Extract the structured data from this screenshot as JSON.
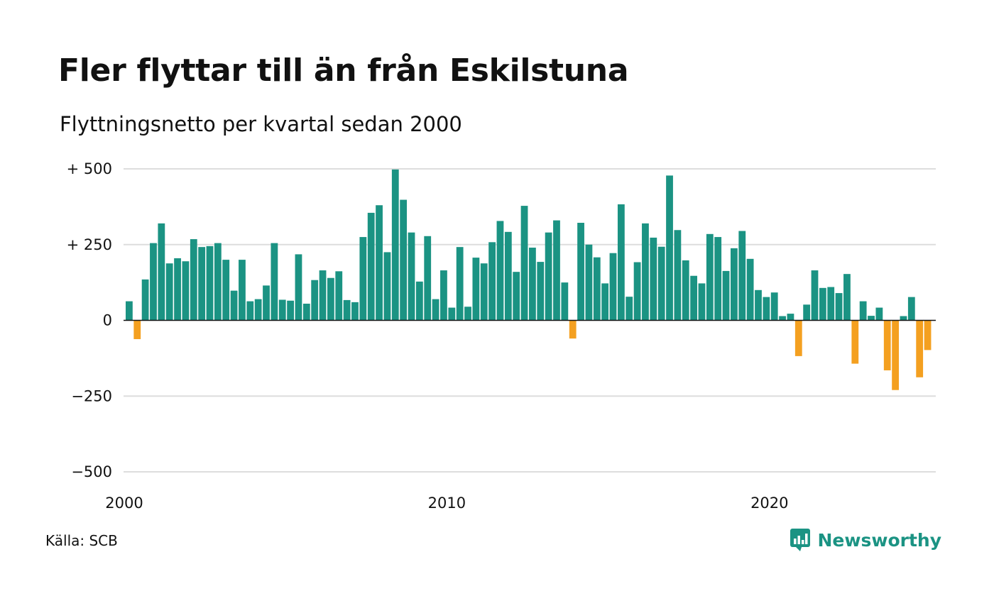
{
  "header": {
    "title": "Fler flyttar till än från Eskilstuna",
    "subtitle": "Flyttningsnetto per kvartal sedan 2000"
  },
  "footer": {
    "source": "Källa: SCB",
    "brand": "Newsworthy"
  },
  "colors": {
    "positive": "#1b9383",
    "negative": "#f4a020",
    "gridline": "#dddddd",
    "baseline": "#111111",
    "brand": "#1b9383"
  },
  "chart_data": {
    "type": "bar",
    "title": "Fler flyttar till än från Eskilstuna",
    "subtitle": "Flyttningsnetto per kvartal sedan 2000",
    "x_start": "2000 Q1",
    "x_frequency": "quarterly",
    "ylim": [
      -500,
      500
    ],
    "y_ticks": [
      500,
      250,
      0,
      -250,
      -500
    ],
    "y_tick_labels": [
      "+ 500",
      "+ 250",
      "0",
      "−250",
      "−500"
    ],
    "x_ticks": [
      2000,
      2010,
      2020
    ],
    "x_tick_labels": [
      "2000",
      "2010",
      "2020"
    ],
    "grid": true,
    "legend": "none",
    "values": [
      63,
      -62,
      135,
      255,
      320,
      188,
      205,
      195,
      268,
      242,
      245,
      255,
      200,
      98,
      200,
      63,
      70,
      115,
      255,
      68,
      65,
      218,
      55,
      133,
      165,
      140,
      162,
      67,
      60,
      275,
      355,
      380,
      225,
      498,
      398,
      290,
      128,
      278,
      70,
      165,
      42,
      242,
      45,
      207,
      188,
      258,
      328,
      292,
      160,
      378,
      240,
      193,
      290,
      330,
      125,
      -60,
      322,
      250,
      208,
      122,
      222,
      383,
      78,
      192,
      320,
      273,
      243,
      478,
      298,
      198,
      147,
      122,
      285,
      275,
      163,
      238,
      295,
      203,
      100,
      77,
      92,
      14,
      22,
      -118,
      52,
      165,
      107,
      110,
      90,
      153,
      -143,
      63,
      15,
      42,
      -165,
      -230,
      14,
      77,
      -188,
      -98
    ]
  }
}
